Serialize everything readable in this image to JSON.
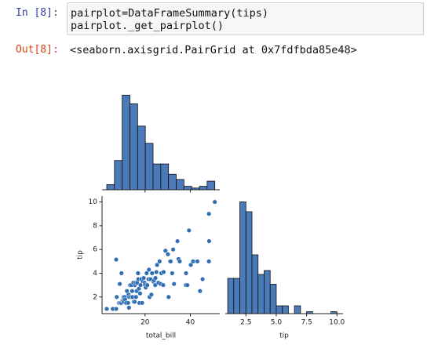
{
  "notebook": {
    "input_prompt": "In [8]:",
    "code": [
      "pairplot=DataFrameSummary(tips)",
      "pairplot._get_pairplot()"
    ],
    "output_prompt": "Out[8]:",
    "output": "<seaborn.axisgrid.PairGrid at 0x7fdfbda85e48>"
  },
  "chart_data": [
    {
      "type": "histogram",
      "color": "#4a7ab8",
      "bins": [
        3.07,
        6.48,
        9.89,
        13.3,
        16.71,
        20.12,
        23.53,
        26.94,
        30.35,
        33.76,
        37.17,
        40.58,
        43.99,
        47.4,
        50.81
      ],
      "values": [
        3,
        17,
        55,
        50,
        37,
        27,
        15,
        15,
        9,
        6,
        2,
        1,
        2,
        5
      ],
      "xlim": [
        1,
        53
      ],
      "ylim": [
        0,
        67
      ],
      "xticks": [
        20,
        40
      ]
    },
    {
      "type": "scatter",
      "color": "#2f6db5",
      "xlabel": "total_bill",
      "ylabel": "tip",
      "x": [
        3.07,
        5.75,
        7.25,
        7.25,
        7.5,
        8.5,
        8.8,
        9,
        9.5,
        9.6,
        10,
        10.3,
        10.5,
        10.6,
        11,
        11.2,
        11.6,
        12,
        12.5,
        12.7,
        12.9,
        13,
        13.4,
        13.8,
        14,
        14.3,
        14.5,
        14.8,
        15,
        15.4,
        15.5,
        15.8,
        16,
        16.3,
        16.5,
        16.9,
        17,
        17.3,
        17.5,
        17.8,
        18,
        18.3,
        18.7,
        19,
        19.4,
        19.8,
        20,
        20.3,
        20.7,
        21,
        21.5,
        21.7,
        22,
        22.4,
        22.8,
        23.1,
        23.7,
        24,
        24.5,
        24.6,
        25,
        25.3,
        25.9,
        26.4,
        26.9,
        27.2,
        28,
        28.2,
        29,
        30.1,
        30.4,
        31,
        31.3,
        32,
        32.4,
        32.8,
        34.3,
        34.8,
        35.3,
        38,
        38.1,
        38.7,
        39.4,
        40.2,
        41.2,
        43.1,
        44.3,
        45.4,
        48.2,
        48.3,
        48.2,
        50.8
      ],
      "y": [
        1,
        1,
        1,
        5.15,
        2,
        1.5,
        3.1,
        1.5,
        1.5,
        4,
        1.7,
        1.7,
        2,
        1.6,
        2,
        1.8,
        1.5,
        2.5,
        1.5,
        2.2,
        1.1,
        2,
        3,
        2,
        3,
        2.5,
        2,
        3.2,
        1.6,
        1.6,
        3,
        3.2,
        2,
        2.5,
        3.2,
        4,
        3.5,
        2.7,
        1.5,
        2.3,
        3,
        3.5,
        1.5,
        3.3,
        3.6,
        3.2,
        3,
        2.8,
        4,
        3,
        3.5,
        4.3,
        2,
        3.5,
        2.2,
        4,
        3.3,
        3.4,
        3,
        3.6,
        4.1,
        4.7,
        3.2,
        5,
        3.1,
        4,
        3,
        4.1,
        5.9,
        5.6,
        2,
        5,
        5,
        4,
        6,
        3.1,
        6.7,
        5.2,
        5,
        3,
        4,
        3,
        7.6,
        4.7,
        5,
        5,
        2.5,
        3.5,
        5,
        6.7,
        9,
        10
      ],
      "xlim": [
        1,
        53
      ],
      "ylim": [
        0.6,
        10.5
      ],
      "xticks": [
        20,
        40
      ],
      "yticks": [
        2,
        4,
        6,
        8,
        10
      ]
    },
    {
      "type": "histogram",
      "color": "#4a7ab8",
      "xlabel": "tip",
      "bins": [
        1,
        1.5,
        2,
        2.5,
        3,
        3.5,
        4,
        4.5,
        5,
        5.5,
        6,
        6.5,
        7,
        7.5,
        8,
        8.5,
        9,
        9.5,
        10
      ],
      "values": [
        18,
        18,
        57,
        52,
        30,
        20,
        22,
        15,
        4,
        4,
        0,
        4,
        0,
        1,
        0,
        0,
        0,
        1
      ],
      "xlim": [
        0.8,
        10.5
      ],
      "ylim": [
        0,
        60
      ],
      "xticks": [
        2.5,
        {
          "value": 5,
          "label": "5.0"
        },
        7.5,
        {
          "value": 10,
          "label": "10.0"
        }
      ]
    }
  ]
}
